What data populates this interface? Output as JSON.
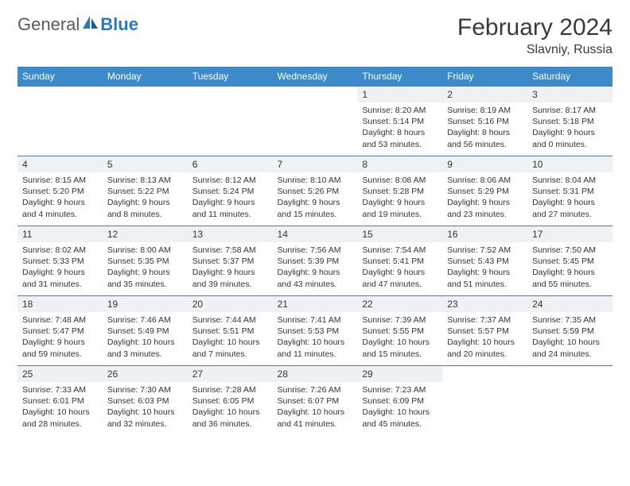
{
  "brand": {
    "part1": "General",
    "part2": "Blue"
  },
  "title": "February 2024",
  "location": "Slavniy, Russia",
  "colors": {
    "header_bg": "#3b8bca",
    "header_text": "#ffffff",
    "band_bg": "#eef2f5",
    "border": "#5a7a9a",
    "text": "#333333",
    "logo_gray": "#5a5a5a",
    "logo_blue": "#2b78c2"
  },
  "dow": [
    "Sunday",
    "Monday",
    "Tuesday",
    "Wednesday",
    "Thursday",
    "Friday",
    "Saturday"
  ],
  "weeks": [
    [
      {
        "n": "",
        "lines": []
      },
      {
        "n": "",
        "lines": []
      },
      {
        "n": "",
        "lines": []
      },
      {
        "n": "",
        "lines": []
      },
      {
        "n": "1",
        "lines": [
          "Sunrise: 8:20 AM",
          "Sunset: 5:14 PM",
          "Daylight: 8 hours",
          "and 53 minutes."
        ]
      },
      {
        "n": "2",
        "lines": [
          "Sunrise: 8:19 AM",
          "Sunset: 5:16 PM",
          "Daylight: 8 hours",
          "and 56 minutes."
        ]
      },
      {
        "n": "3",
        "lines": [
          "Sunrise: 8:17 AM",
          "Sunset: 5:18 PM",
          "Daylight: 9 hours",
          "and 0 minutes."
        ]
      }
    ],
    [
      {
        "n": "4",
        "lines": [
          "Sunrise: 8:15 AM",
          "Sunset: 5:20 PM",
          "Daylight: 9 hours",
          "and 4 minutes."
        ]
      },
      {
        "n": "5",
        "lines": [
          "Sunrise: 8:13 AM",
          "Sunset: 5:22 PM",
          "Daylight: 9 hours",
          "and 8 minutes."
        ]
      },
      {
        "n": "6",
        "lines": [
          "Sunrise: 8:12 AM",
          "Sunset: 5:24 PM",
          "Daylight: 9 hours",
          "and 11 minutes."
        ]
      },
      {
        "n": "7",
        "lines": [
          "Sunrise: 8:10 AM",
          "Sunset: 5:26 PM",
          "Daylight: 9 hours",
          "and 15 minutes."
        ]
      },
      {
        "n": "8",
        "lines": [
          "Sunrise: 8:08 AM",
          "Sunset: 5:28 PM",
          "Daylight: 9 hours",
          "and 19 minutes."
        ]
      },
      {
        "n": "9",
        "lines": [
          "Sunrise: 8:06 AM",
          "Sunset: 5:29 PM",
          "Daylight: 9 hours",
          "and 23 minutes."
        ]
      },
      {
        "n": "10",
        "lines": [
          "Sunrise: 8:04 AM",
          "Sunset: 5:31 PM",
          "Daylight: 9 hours",
          "and 27 minutes."
        ]
      }
    ],
    [
      {
        "n": "11",
        "lines": [
          "Sunrise: 8:02 AM",
          "Sunset: 5:33 PM",
          "Daylight: 9 hours",
          "and 31 minutes."
        ]
      },
      {
        "n": "12",
        "lines": [
          "Sunrise: 8:00 AM",
          "Sunset: 5:35 PM",
          "Daylight: 9 hours",
          "and 35 minutes."
        ]
      },
      {
        "n": "13",
        "lines": [
          "Sunrise: 7:58 AM",
          "Sunset: 5:37 PM",
          "Daylight: 9 hours",
          "and 39 minutes."
        ]
      },
      {
        "n": "14",
        "lines": [
          "Sunrise: 7:56 AM",
          "Sunset: 5:39 PM",
          "Daylight: 9 hours",
          "and 43 minutes."
        ]
      },
      {
        "n": "15",
        "lines": [
          "Sunrise: 7:54 AM",
          "Sunset: 5:41 PM",
          "Daylight: 9 hours",
          "and 47 minutes."
        ]
      },
      {
        "n": "16",
        "lines": [
          "Sunrise: 7:52 AM",
          "Sunset: 5:43 PM",
          "Daylight: 9 hours",
          "and 51 minutes."
        ]
      },
      {
        "n": "17",
        "lines": [
          "Sunrise: 7:50 AM",
          "Sunset: 5:45 PM",
          "Daylight: 9 hours",
          "and 55 minutes."
        ]
      }
    ],
    [
      {
        "n": "18",
        "lines": [
          "Sunrise: 7:48 AM",
          "Sunset: 5:47 PM",
          "Daylight: 9 hours",
          "and 59 minutes."
        ]
      },
      {
        "n": "19",
        "lines": [
          "Sunrise: 7:46 AM",
          "Sunset: 5:49 PM",
          "Daylight: 10 hours",
          "and 3 minutes."
        ]
      },
      {
        "n": "20",
        "lines": [
          "Sunrise: 7:44 AM",
          "Sunset: 5:51 PM",
          "Daylight: 10 hours",
          "and 7 minutes."
        ]
      },
      {
        "n": "21",
        "lines": [
          "Sunrise: 7:41 AM",
          "Sunset: 5:53 PM",
          "Daylight: 10 hours",
          "and 11 minutes."
        ]
      },
      {
        "n": "22",
        "lines": [
          "Sunrise: 7:39 AM",
          "Sunset: 5:55 PM",
          "Daylight: 10 hours",
          "and 15 minutes."
        ]
      },
      {
        "n": "23",
        "lines": [
          "Sunrise: 7:37 AM",
          "Sunset: 5:57 PM",
          "Daylight: 10 hours",
          "and 20 minutes."
        ]
      },
      {
        "n": "24",
        "lines": [
          "Sunrise: 7:35 AM",
          "Sunset: 5:59 PM",
          "Daylight: 10 hours",
          "and 24 minutes."
        ]
      }
    ],
    [
      {
        "n": "25",
        "lines": [
          "Sunrise: 7:33 AM",
          "Sunset: 6:01 PM",
          "Daylight: 10 hours",
          "and 28 minutes."
        ]
      },
      {
        "n": "26",
        "lines": [
          "Sunrise: 7:30 AM",
          "Sunset: 6:03 PM",
          "Daylight: 10 hours",
          "and 32 minutes."
        ]
      },
      {
        "n": "27",
        "lines": [
          "Sunrise: 7:28 AM",
          "Sunset: 6:05 PM",
          "Daylight: 10 hours",
          "and 36 minutes."
        ]
      },
      {
        "n": "28",
        "lines": [
          "Sunrise: 7:26 AM",
          "Sunset: 6:07 PM",
          "Daylight: 10 hours",
          "and 41 minutes."
        ]
      },
      {
        "n": "29",
        "lines": [
          "Sunrise: 7:23 AM",
          "Sunset: 6:09 PM",
          "Daylight: 10 hours",
          "and 45 minutes."
        ]
      },
      {
        "n": "",
        "lines": []
      },
      {
        "n": "",
        "lines": []
      }
    ]
  ]
}
